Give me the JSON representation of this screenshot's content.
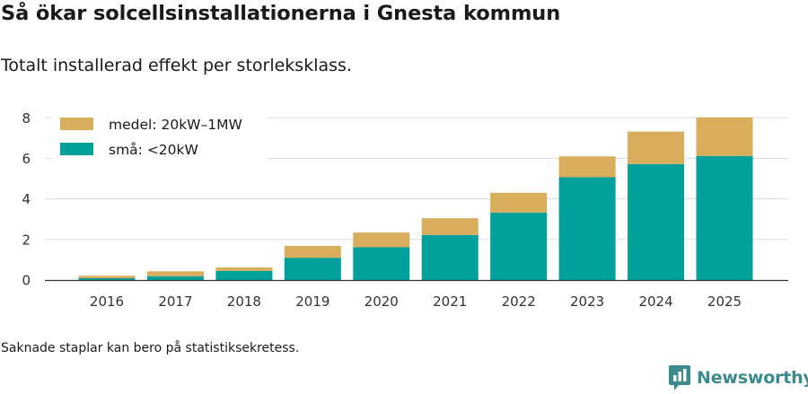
{
  "header": {
    "title": "Så ökar solcellsinstallationerna i Gnesta kommun",
    "subtitle": "Totalt installerad effekt per storleksklass."
  },
  "footer": {
    "note": "Saknade staplar kan bero på statistiksekretess.",
    "brand": "Newsworthy"
  },
  "colors": {
    "small": "#00a19a",
    "medium": "#d8ad5c",
    "grid": "#dddddd",
    "axis": "#333333",
    "brand": "#3a8a8e"
  },
  "chart_data": {
    "type": "bar",
    "stacked": true,
    "title": "Så ökar solcellsinstallationerna i Gnesta kommun",
    "subtitle": "Totalt installerad effekt per storleksklass.",
    "xlabel": "",
    "ylabel": "",
    "categories": [
      "2016",
      "2017",
      "2018",
      "2019",
      "2020",
      "2021",
      "2022",
      "2023",
      "2024",
      "2025"
    ],
    "series": [
      {
        "name": "små: <20kW",
        "color": "#00a19a",
        "values": [
          0.09,
          0.19,
          0.45,
          1.1,
          1.62,
          2.22,
          3.33,
          5.07,
          5.72,
          6.12
        ]
      },
      {
        "name": "medel: 20kW–1MW",
        "color": "#d8ad5c",
        "values": [
          0.12,
          0.24,
          0.17,
          0.58,
          0.72,
          0.83,
          0.97,
          1.03,
          1.6,
          1.9
        ]
      }
    ],
    "legend_order": [
      "medel: 20kW–1MW",
      "små: <20kW"
    ],
    "legend_position": "top-left",
    "yticks": [
      0,
      2,
      4,
      6,
      8
    ],
    "ylim": [
      0,
      8.5
    ],
    "grid": true
  }
}
